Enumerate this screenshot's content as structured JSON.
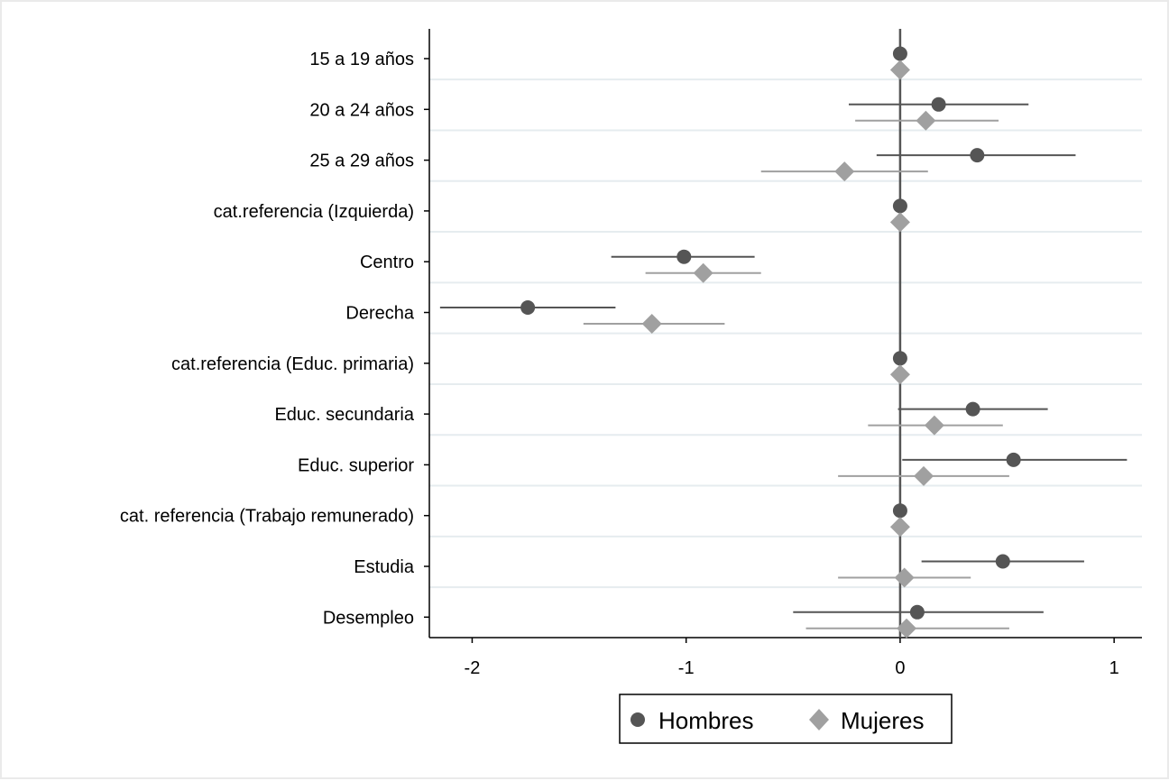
{
  "chart_data": {
    "type": "coefficient-plot",
    "title": "",
    "xlabel": "",
    "ylabel": "",
    "xlim": [
      -2.2,
      1.13
    ],
    "xticks": [
      -2,
      -1,
      0,
      1
    ],
    "xtick_labels": [
      "-2",
      "-1",
      "0",
      "1"
    ],
    "reference_line": 0,
    "grid": "horizontal",
    "legend_position": "bottom",
    "categories": [
      "15 a 19 años",
      "20 a 24 años",
      "25 a 29 años",
      "cat.referencia (Izquierda)",
      "Centro",
      "Derecha",
      "cat.referencia (Educ. primaria)",
      "Educ. secundaria",
      "Educ. superior",
      "cat. referencia (Trabajo remunerado)",
      "Estudia",
      "Desempleo"
    ],
    "series": [
      {
        "name": "Hombres",
        "marker": "circle",
        "color": "#555555",
        "estimate": [
          0,
          0.18,
          0.36,
          0,
          -1.01,
          -1.74,
          0,
          0.34,
          0.53,
          0,
          0.48,
          0.08
        ],
        "ci_low": [
          0,
          -0.24,
          -0.11,
          0,
          -1.35,
          -2.15,
          0,
          -0.01,
          0.01,
          0,
          0.1,
          -0.5
        ],
        "ci_high": [
          0,
          0.6,
          0.82,
          0,
          -0.68,
          -1.33,
          0,
          0.69,
          1.06,
          0,
          0.86,
          0.67
        ]
      },
      {
        "name": "Mujeres",
        "marker": "diamond",
        "color": "#a0a0a0",
        "estimate": [
          0,
          0.12,
          -0.26,
          0,
          -0.92,
          -1.16,
          0,
          0.16,
          0.11,
          0,
          0.02,
          0.03
        ],
        "ci_low": [
          0,
          -0.21,
          -0.65,
          0,
          -1.19,
          -1.48,
          0,
          -0.15,
          -0.29,
          0,
          -0.29,
          -0.44
        ],
        "ci_high": [
          0,
          0.46,
          0.13,
          0,
          -0.65,
          -0.82,
          0,
          0.48,
          0.51,
          0,
          0.33,
          0.51
        ]
      }
    ]
  }
}
